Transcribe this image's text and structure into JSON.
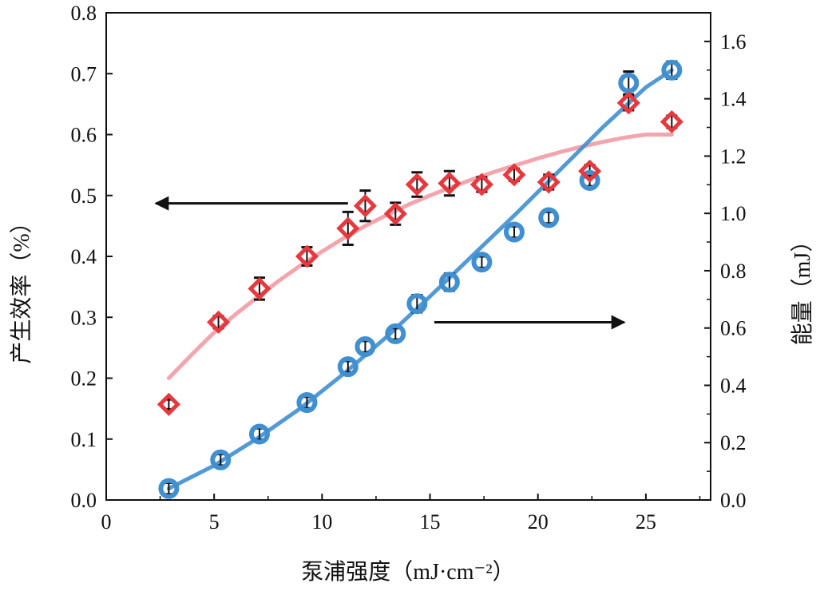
{
  "chart_data": {
    "type": "scatter",
    "xlabel": "泵浦强度（mJ·cm⁻²）",
    "ylabel_left": "产生效率（%）",
    "ylabel_right": "能量（mJ）",
    "xlim": [
      0,
      28
    ],
    "ylim_left": [
      0,
      0.8
    ],
    "ylim_right": [
      0,
      1.7
    ],
    "x_ticks": [
      "0",
      "5",
      "10",
      "15",
      "20",
      "25"
    ],
    "x_tick_values": [
      0,
      5,
      10,
      15,
      20,
      25
    ],
    "y_left_ticks": [
      "0.0",
      "0.1",
      "0.2",
      "0.3",
      "0.4",
      "0.5",
      "0.6",
      "0.7",
      "0.8"
    ],
    "y_left_tick_values": [
      0,
      0.1,
      0.2,
      0.3,
      0.4,
      0.5,
      0.6,
      0.7,
      0.8
    ],
    "y_right_ticks": [
      "0.0",
      "0.2",
      "0.4",
      "0.6",
      "0.8",
      "1.0",
      "1.2",
      "1.4",
      "1.6"
    ],
    "y_right_tick_values": [
      0,
      0.2,
      0.4,
      0.6,
      0.8,
      1.0,
      1.2,
      1.4,
      1.6
    ],
    "series": [
      {
        "axis": "left",
        "marker": "diamond",
        "color": "#e8383d",
        "x": [
          2.9,
          5.2,
          7.1,
          9.3,
          11.2,
          12.0,
          13.4,
          14.4,
          15.9,
          17.4,
          18.9,
          20.5,
          22.4,
          24.2,
          26.2
        ],
        "y": [
          0.157,
          0.292,
          0.347,
          0.4,
          0.446,
          0.483,
          0.47,
          0.518,
          0.52,
          0.518,
          0.534,
          0.522,
          0.54,
          0.652,
          0.621
        ],
        "err": [
          0.008,
          0.01,
          0.018,
          0.015,
          0.027,
          0.025,
          0.018,
          0.02,
          0.02,
          0.012,
          0.01,
          0.012,
          0.01,
          0.012,
          0.01
        ]
      },
      {
        "axis": "right",
        "marker": "circle",
        "color": "#3f8fd1",
        "x": [
          2.9,
          5.3,
          7.1,
          9.3,
          11.2,
          12.0,
          13.4,
          14.4,
          15.9,
          17.4,
          18.9,
          20.5,
          22.4,
          24.2,
          26.2
        ],
        "y": [
          0.04,
          0.14,
          0.23,
          0.34,
          0.465,
          0.535,
          0.58,
          0.685,
          0.76,
          0.83,
          0.935,
          0.985,
          1.115,
          1.455,
          1.5
        ],
        "err": [
          0.02,
          0.02,
          0.02,
          0.02,
          0.02,
          0.02,
          0.02,
          0.03,
          0.03,
          0.02,
          0.02,
          0.02,
          0.02,
          0.04,
          0.03
        ]
      }
    ],
    "fits": [
      {
        "axis": "left",
        "color": "#f29aa3",
        "x": [
          2.9,
          4,
          5,
          6,
          7,
          8,
          9,
          10,
          11,
          12,
          13,
          14,
          15,
          16,
          17,
          18,
          19,
          20,
          21,
          22,
          23,
          24,
          25,
          26.2
        ],
        "y": [
          0.2,
          0.24,
          0.275,
          0.305,
          0.333,
          0.36,
          0.385,
          0.408,
          0.43,
          0.45,
          0.468,
          0.485,
          0.5,
          0.514,
          0.527,
          0.539,
          0.55,
          0.561,
          0.571,
          0.58,
          0.588,
          0.595,
          0.6,
          0.6
        ]
      },
      {
        "axis": "right",
        "color": "#3f8fd1",
        "x": [
          2.9,
          5,
          7,
          9,
          11,
          13,
          15,
          17,
          19,
          21,
          23,
          25,
          26.2
        ],
        "y": [
          0.04,
          0.12,
          0.215,
          0.32,
          0.44,
          0.57,
          0.71,
          0.855,
          1.0,
          1.15,
          1.3,
          1.44,
          1.5
        ]
      }
    ],
    "arrows": [
      {
        "direction": "left",
        "axis": "left",
        "x_from": 11.2,
        "x_to": 2.3,
        "y": 0.487
      },
      {
        "direction": "right",
        "axis": "right",
        "x_from": 15.2,
        "x_to": 24.0,
        "y": 0.62
      }
    ]
  }
}
